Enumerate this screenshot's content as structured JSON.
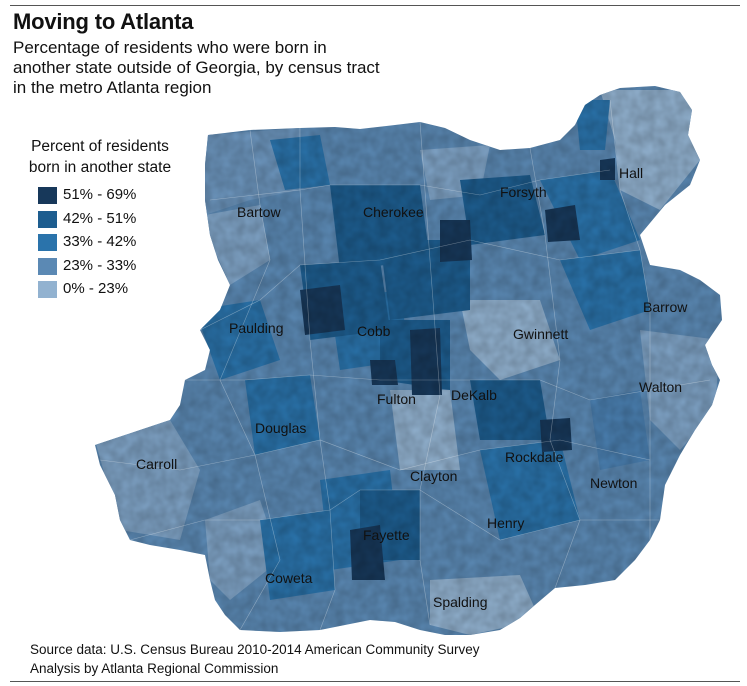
{
  "header": {
    "title": "Moving to Atlanta",
    "subtitle": "Percentage of residents who were born in another state outside of Georgia, by census tract in the metro Atlanta region"
  },
  "legend": {
    "title": "Percent of residents born in another state",
    "items": [
      {
        "label": "51% - 69%",
        "color": "#17385a"
      },
      {
        "label": "42% - 51%",
        "color": "#1d5d8f"
      },
      {
        "label": "33% - 42%",
        "color": "#2a73ab"
      },
      {
        "label": "23% - 33%",
        "color": "#5b89b4"
      },
      {
        "label": "0% - 23%",
        "color": "#92b2d0"
      }
    ]
  },
  "map": {
    "counties": [
      {
        "name": "Bartow"
      },
      {
        "name": "Cherokee"
      },
      {
        "name": "Forsyth"
      },
      {
        "name": "Hall"
      },
      {
        "name": "Paulding"
      },
      {
        "name": "Cobb"
      },
      {
        "name": "Gwinnett"
      },
      {
        "name": "Barrow"
      },
      {
        "name": "Fulton"
      },
      {
        "name": "DeKalb"
      },
      {
        "name": "Walton"
      },
      {
        "name": "Douglas"
      },
      {
        "name": "Carroll"
      },
      {
        "name": "Rockdale"
      },
      {
        "name": "Clayton"
      },
      {
        "name": "Newton"
      },
      {
        "name": "Fayette"
      },
      {
        "name": "Henry"
      },
      {
        "name": "Coweta"
      },
      {
        "name": "Spalding"
      }
    ]
  },
  "source": {
    "line1": "Source data: U.S. Census Bureau 2010-2014 American Community Survey",
    "line2": "Analysis by Atlanta Regional Commission"
  }
}
